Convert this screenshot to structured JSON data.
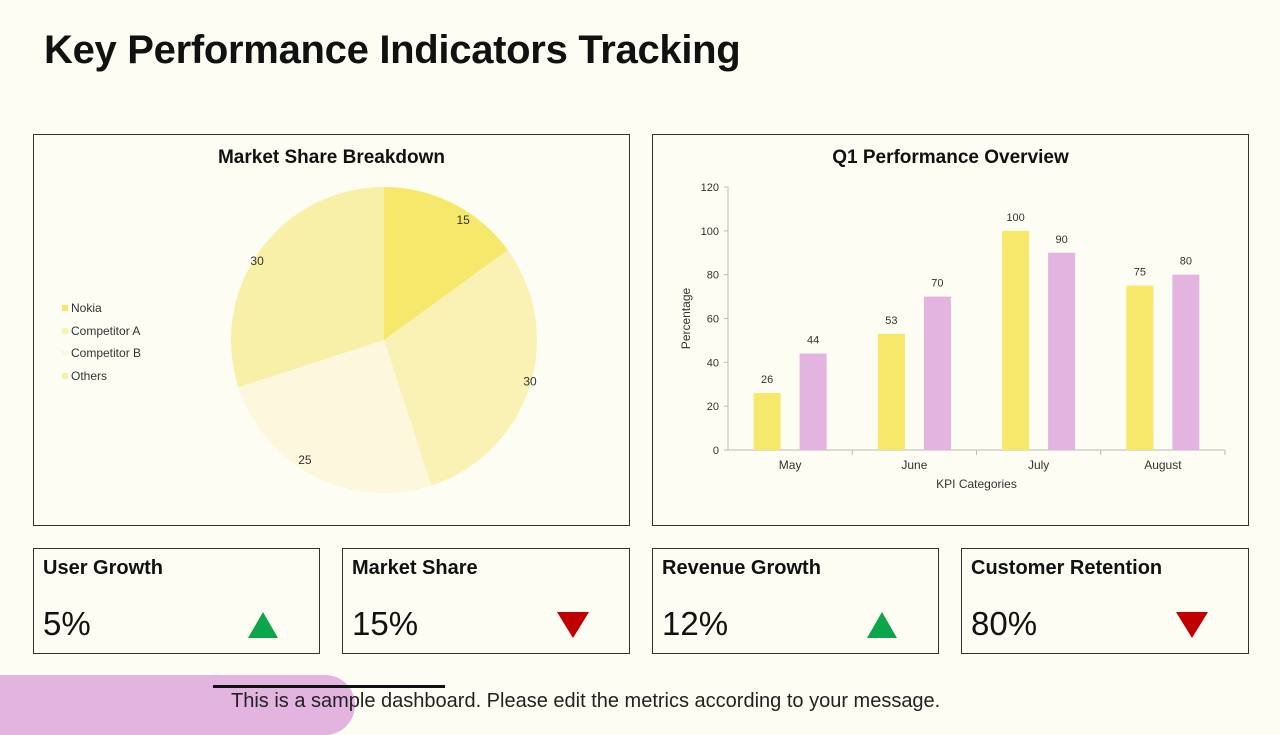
{
  "title": "Key Performance Indicators Tracking",
  "chart_data": [
    {
      "type": "pie",
      "title": "Market Share Breakdown",
      "labels": [
        "Nokia",
        "Competitor A",
        "Competitor B",
        "Others"
      ],
      "values": [
        15,
        30,
        25,
        30
      ],
      "colors": [
        "#f6e86a",
        "#faf2b4",
        "#fcf7dd",
        "#f9f0a8"
      ],
      "legend_position": "left"
    },
    {
      "type": "bar",
      "title": "Q1 Performance Overview",
      "categories": [
        "May",
        "June",
        "July",
        "August"
      ],
      "series": [
        {
          "values": [
            26,
            53,
            100,
            75
          ],
          "color": "#f6e86a"
        },
        {
          "values": [
            44,
            70,
            90,
            80
          ],
          "color": "#e2b4df"
        }
      ],
      "xlabel": "KPI Categories",
      "ylabel": "Percentage",
      "ylim": [
        0,
        120
      ],
      "yticks": [
        0,
        20,
        40,
        60,
        80,
        100,
        120
      ],
      "grid": false
    }
  ],
  "kpis": [
    {
      "label": "User Growth",
      "value": "5%",
      "trend": "up"
    },
    {
      "label": "Market Share",
      "value": "15%",
      "trend": "down"
    },
    {
      "label": "Revenue Growth",
      "value": "12%",
      "trend": "up"
    },
    {
      "label": "Customer Retention",
      "value": "80%",
      "trend": "down"
    }
  ],
  "footer_note": "This is a sample dashboard.  Please edit the metrics according to your message.",
  "colors": {
    "up": "#0ca64a",
    "down": "#c00000",
    "accent": "#e2b4df"
  }
}
